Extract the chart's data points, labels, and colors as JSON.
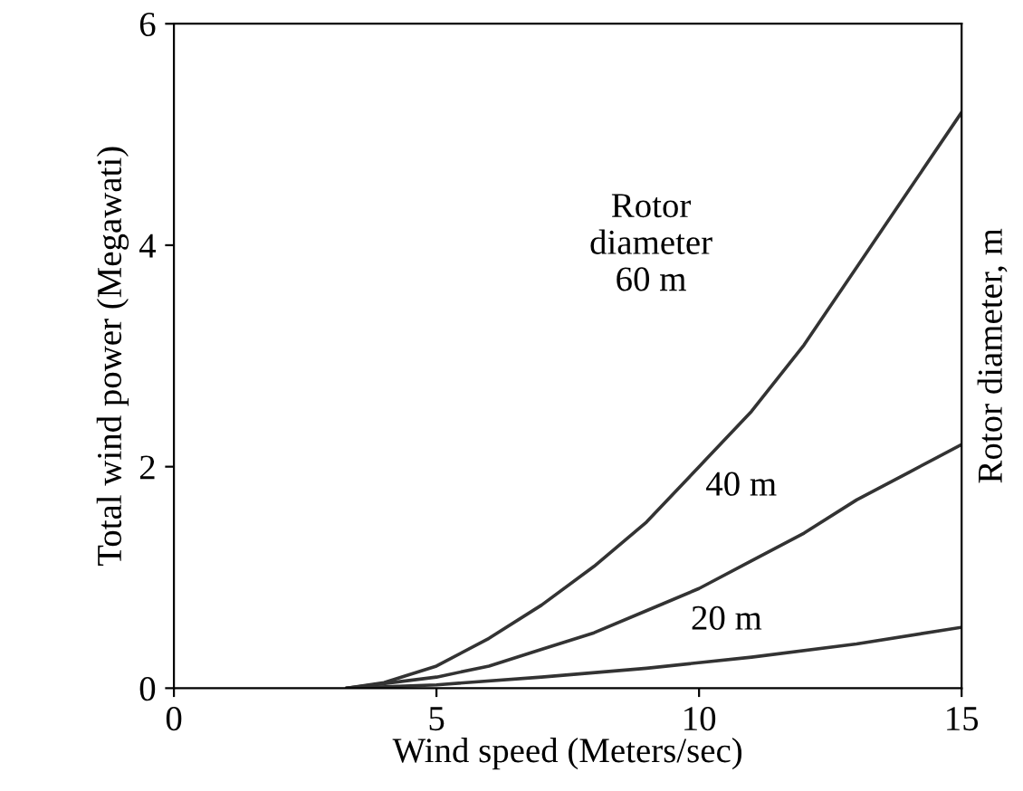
{
  "chart_data": {
    "type": "line",
    "xlabel": "Wind speed (Meters/sec)",
    "ylabel": "Total wind power (Megawati)",
    "y2label": "Rotor diameter, m",
    "xlim": [
      0,
      15
    ],
    "ylim": [
      0,
      6
    ],
    "xticks": [
      0,
      5,
      10,
      15
    ],
    "yticks": [
      0,
      2,
      4,
      6
    ],
    "grid": false,
    "marker": "none",
    "line_style": "solid",
    "series": [
      {
        "color": "#333333",
        "x": [
          3.3,
          4,
          5,
          6,
          7,
          8,
          9,
          10,
          11,
          12,
          13,
          14,
          15
        ],
        "values": [
          0,
          0.05,
          0.2,
          0.45,
          0.75,
          1.1,
          1.5,
          2.0,
          2.5,
          3.1,
          3.8,
          4.5,
          5.2
        ]
      },
      {
        "color": "#333333",
        "x": [
          3.3,
          5,
          6,
          7,
          8,
          9,
          10,
          11,
          12,
          13,
          14,
          15
        ],
        "values": [
          0,
          0.1,
          0.2,
          0.35,
          0.5,
          0.7,
          0.9,
          1.15,
          1.4,
          1.7,
          1.95,
          2.2
        ]
      },
      {
        "color": "#333333",
        "x": [
          3.3,
          5,
          7,
          9,
          11,
          13,
          15
        ],
        "values": [
          0,
          0.03,
          0.1,
          0.18,
          0.28,
          0.4,
          0.55
        ]
      }
    ],
    "annotations": [
      "Rotor\ndiameter\n60 m",
      "40 m",
      "20 m"
    ]
  }
}
